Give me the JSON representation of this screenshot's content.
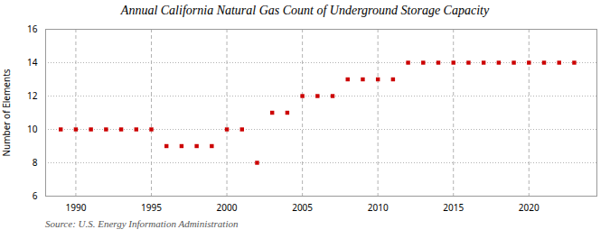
{
  "chart_data": {
    "type": "scatter",
    "title": "Annual California Natural Gas Count of Underground Storage Capacity",
    "ylabel": "Number of Elements",
    "source": "Source: U.S. Energy Information Administration",
    "x": [
      1989,
      1990,
      1991,
      1992,
      1993,
      1994,
      1995,
      1996,
      1997,
      1998,
      1999,
      2000,
      2001,
      2002,
      2003,
      2004,
      2005,
      2006,
      2007,
      2008,
      2009,
      2010,
      2011,
      2012,
      2013,
      2014,
      2015,
      2016,
      2017,
      2018,
      2019,
      2020,
      2021,
      2022,
      2023
    ],
    "values": [
      10,
      10,
      10,
      10,
      10,
      10,
      10,
      9,
      9,
      9,
      9,
      10,
      10,
      8,
      11,
      11,
      12,
      12,
      12,
      13,
      13,
      13,
      13,
      14,
      14,
      14,
      14,
      14,
      14,
      14,
      14,
      14,
      14,
      14,
      14
    ],
    "color": "#cc0000",
    "marker": "square",
    "xlim": [
      1988.0,
      2024.5
    ],
    "xticks": [
      1990,
      1995,
      2000,
      2005,
      2010,
      2015,
      2020
    ],
    "ylim": [
      6,
      16
    ],
    "yticks": [
      6,
      8,
      10,
      12,
      14,
      16
    ],
    "grid": true
  }
}
